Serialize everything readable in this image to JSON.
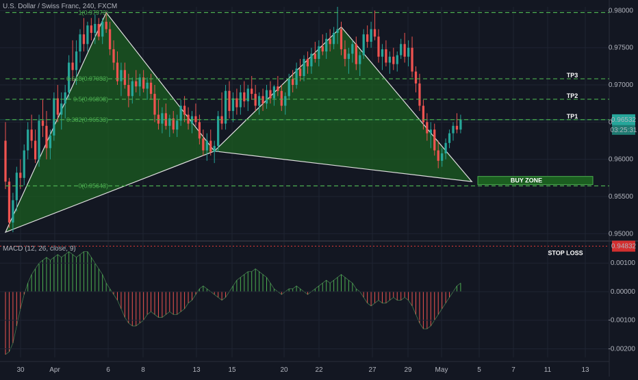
{
  "header": {
    "title": "U.S. Dollar / Swiss Franc, 240, FXCM"
  },
  "macd": {
    "label": "MACD (12, 26, close, 9)",
    "ticks": [
      "0.00100",
      "0.00000",
      "-0.00100",
      "-0.00200"
    ]
  },
  "colors": {
    "background": "#131722",
    "up_candle": "#26a69a",
    "down_candle": "#ef5350",
    "pattern_fill": "#1b5e20",
    "fib_line": "#4caf50",
    "stop_line": "#e53935",
    "price_tag": "#26a69a",
    "stop_tag": "#d32f2f"
  },
  "chart_data": {
    "type": "candlestick",
    "symbol": "U.S. Dollar / Swiss Franc",
    "interval": "240",
    "source": "FXCM",
    "ylim": [
      0.9492,
      0.9805
    ],
    "y_ticks": [
      "0.98000",
      "0.97500",
      "0.97000",
      "0.96500",
      "0.96000",
      "0.95500",
      "0.95000"
    ],
    "x_ticks": [
      "30",
      "Apr",
      "6",
      "8",
      "13",
      "15",
      "20",
      "22",
      "27",
      "29",
      "May",
      "5",
      "7",
      "11",
      "13"
    ],
    "fib_levels": [
      {
        "label": "1(0.97973)",
        "price": 0.97973
      },
      {
        "label": "0.618(0.97083)",
        "price": 0.97083
      },
      {
        "label": "0.5(0.96808)",
        "price": 0.96808
      },
      {
        "label": "0.382(0.96533)",
        "price": 0.96533
      },
      {
        "label": "0(0.95643)",
        "price": 0.95643
      }
    ],
    "targets": [
      {
        "label": "TP3",
        "price": 0.97083
      },
      {
        "label": "TP2",
        "price": 0.96808
      },
      {
        "label": "TP1",
        "price": 0.96533
      }
    ],
    "buy_zone": {
      "label": "BUY ZONE",
      "low": 0.9566,
      "high": 0.9577
    },
    "stop_loss": {
      "label": "STOP LOSS",
      "price": 0.94832,
      "tag": "0.94832"
    },
    "last_price": {
      "price": 0.96532,
      "tag": "0.96532",
      "countdown": "03:25:31"
    },
    "pattern_points": {
      "X": {
        "bar": 0,
        "price": 0.9502
      },
      "A": {
        "bar": 27,
        "price": 0.97973
      },
      "B": {
        "bar": 56,
        "price": 0.9611
      },
      "C": {
        "bar": 90,
        "price": 0.9778
      },
      "D": {
        "bar": 125,
        "price": 0.957
      }
    },
    "candles": [
      [
        0.9625,
        0.965,
        0.956,
        0.957
      ],
      [
        0.957,
        0.9575,
        0.9508,
        0.9515
      ],
      [
        0.9515,
        0.9555,
        0.9502,
        0.9545
      ],
      [
        0.9545,
        0.959,
        0.953,
        0.9582
      ],
      [
        0.9582,
        0.96,
        0.956,
        0.9575
      ],
      [
        0.9575,
        0.962,
        0.9565,
        0.9612
      ],
      [
        0.9612,
        0.965,
        0.96,
        0.964
      ],
      [
        0.964,
        0.966,
        0.9615,
        0.9625
      ],
      [
        0.9625,
        0.964,
        0.9595,
        0.96
      ],
      [
        0.96,
        0.966,
        0.959,
        0.9652
      ],
      [
        0.9652,
        0.968,
        0.963,
        0.9645
      ],
      [
        0.9645,
        0.9665,
        0.96,
        0.9615
      ],
      [
        0.9615,
        0.964,
        0.96,
        0.9632
      ],
      [
        0.9632,
        0.969,
        0.9625,
        0.9682
      ],
      [
        0.9682,
        0.97,
        0.965,
        0.966
      ],
      [
        0.966,
        0.969,
        0.964,
        0.9675
      ],
      [
        0.9675,
        0.97,
        0.9655,
        0.969
      ],
      [
        0.969,
        0.974,
        0.968,
        0.973
      ],
      [
        0.973,
        0.976,
        0.9705,
        0.972
      ],
      [
        0.972,
        0.976,
        0.97,
        0.9745
      ],
      [
        0.9745,
        0.9775,
        0.973,
        0.9768
      ],
      [
        0.9768,
        0.979,
        0.9745,
        0.9755
      ],
      [
        0.9755,
        0.9785,
        0.9745,
        0.978
      ],
      [
        0.978,
        0.979,
        0.976,
        0.977
      ],
      [
        0.977,
        0.9795,
        0.9755,
        0.9782
      ],
      [
        0.9782,
        0.979,
        0.976,
        0.9765
      ],
      [
        0.9765,
        0.979,
        0.9755,
        0.9785
      ],
      [
        0.9785,
        0.9797,
        0.977,
        0.9775
      ],
      [
        0.9775,
        0.9785,
        0.974,
        0.9748
      ],
      [
        0.9748,
        0.976,
        0.972,
        0.973
      ],
      [
        0.973,
        0.9745,
        0.97,
        0.9705
      ],
      [
        0.9705,
        0.973,
        0.9685,
        0.972
      ],
      [
        0.972,
        0.973,
        0.9695,
        0.97
      ],
      [
        0.97,
        0.9715,
        0.967,
        0.9685
      ],
      [
        0.9685,
        0.971,
        0.9675,
        0.9705
      ],
      [
        0.9705,
        0.972,
        0.969,
        0.9698
      ],
      [
        0.9698,
        0.9715,
        0.9685,
        0.971
      ],
      [
        0.971,
        0.972,
        0.969,
        0.9695
      ],
      [
        0.9695,
        0.971,
        0.968,
        0.9703
      ],
      [
        0.9703,
        0.9715,
        0.968,
        0.9688
      ],
      [
        0.9688,
        0.97,
        0.965,
        0.966
      ],
      [
        0.966,
        0.968,
        0.964,
        0.9648
      ],
      [
        0.9648,
        0.967,
        0.9635,
        0.9662
      ],
      [
        0.9662,
        0.9675,
        0.964,
        0.9645
      ],
      [
        0.9645,
        0.966,
        0.963,
        0.9655
      ],
      [
        0.9655,
        0.9665,
        0.9635,
        0.964
      ],
      [
        0.964,
        0.966,
        0.963,
        0.9652
      ],
      [
        0.9652,
        0.968,
        0.9645,
        0.9672
      ],
      [
        0.9672,
        0.9685,
        0.965,
        0.966
      ],
      [
        0.966,
        0.967,
        0.964,
        0.9648
      ],
      [
        0.9648,
        0.9665,
        0.9635,
        0.9658
      ],
      [
        0.9658,
        0.9675,
        0.9645,
        0.965
      ],
      [
        0.965,
        0.966,
        0.962,
        0.9628
      ],
      [
        0.9628,
        0.964,
        0.9605,
        0.9612
      ],
      [
        0.9612,
        0.9635,
        0.9598,
        0.9625
      ],
      [
        0.9625,
        0.964,
        0.9605,
        0.961
      ],
      [
        0.961,
        0.9625,
        0.9595,
        0.9618
      ],
      [
        0.9618,
        0.9665,
        0.961,
        0.9658
      ],
      [
        0.9658,
        0.969,
        0.964,
        0.9648
      ],
      [
        0.9648,
        0.97,
        0.964,
        0.9692
      ],
      [
        0.9692,
        0.9705,
        0.9655,
        0.9665
      ],
      [
        0.9665,
        0.969,
        0.965,
        0.9682
      ],
      [
        0.9682,
        0.9695,
        0.966,
        0.967
      ],
      [
        0.967,
        0.97,
        0.966,
        0.969
      ],
      [
        0.969,
        0.9705,
        0.967,
        0.9678
      ],
      [
        0.9678,
        0.97,
        0.9665,
        0.9695
      ],
      [
        0.9695,
        0.9712,
        0.968,
        0.9688
      ],
      [
        0.9688,
        0.97,
        0.9665,
        0.9672
      ],
      [
        0.9672,
        0.969,
        0.966,
        0.9685
      ],
      [
        0.9685,
        0.9695,
        0.9665,
        0.9675
      ],
      [
        0.9675,
        0.97,
        0.9668,
        0.9693
      ],
      [
        0.9693,
        0.9705,
        0.9675,
        0.9682
      ],
      [
        0.9682,
        0.97,
        0.9672,
        0.9698
      ],
      [
        0.9698,
        0.9712,
        0.9685,
        0.9692
      ],
      [
        0.9692,
        0.97,
        0.9665,
        0.9672
      ],
      [
        0.9672,
        0.969,
        0.966,
        0.9685
      ],
      [
        0.9685,
        0.9715,
        0.968,
        0.9708
      ],
      [
        0.9708,
        0.972,
        0.969,
        0.97
      ],
      [
        0.97,
        0.973,
        0.9695,
        0.9722
      ],
      [
        0.9722,
        0.9735,
        0.9705,
        0.9712
      ],
      [
        0.9712,
        0.974,
        0.9705,
        0.9735
      ],
      [
        0.9735,
        0.9745,
        0.9715,
        0.9725
      ],
      [
        0.9725,
        0.975,
        0.9715,
        0.9742
      ],
      [
        0.9742,
        0.9758,
        0.973,
        0.9735
      ],
      [
        0.9735,
        0.976,
        0.9725,
        0.9752
      ],
      [
        0.9752,
        0.9768,
        0.974,
        0.9745
      ],
      [
        0.9745,
        0.977,
        0.9735,
        0.9762
      ],
      [
        0.9762,
        0.9775,
        0.9745,
        0.9755
      ],
      [
        0.9755,
        0.9778,
        0.9748,
        0.977
      ],
      [
        0.977,
        0.9805,
        0.9755,
        0.9775
      ],
      [
        0.9775,
        0.9785,
        0.974,
        0.9748
      ],
      [
        0.9748,
        0.976,
        0.9725,
        0.9735
      ],
      [
        0.9735,
        0.975,
        0.9715,
        0.9742
      ],
      [
        0.9742,
        0.976,
        0.973,
        0.9755
      ],
      [
        0.9755,
        0.9765,
        0.972,
        0.9728
      ],
      [
        0.9728,
        0.9745,
        0.9712,
        0.974
      ],
      [
        0.974,
        0.9775,
        0.9735,
        0.9768
      ],
      [
        0.9768,
        0.978,
        0.975,
        0.9758
      ],
      [
        0.9758,
        0.9785,
        0.975,
        0.9775
      ],
      [
        0.9775,
        0.98,
        0.976,
        0.9765
      ],
      [
        0.9765,
        0.9775,
        0.973,
        0.9738
      ],
      [
        0.9738,
        0.9755,
        0.972,
        0.9748
      ],
      [
        0.9748,
        0.976,
        0.9725,
        0.973
      ],
      [
        0.973,
        0.9745,
        0.9715,
        0.9738
      ],
      [
        0.9738,
        0.975,
        0.972,
        0.9728
      ],
      [
        0.9728,
        0.9745,
        0.9718,
        0.974
      ],
      [
        0.974,
        0.9762,
        0.9735,
        0.9755
      ],
      [
        0.9755,
        0.977,
        0.973,
        0.9738
      ],
      [
        0.9738,
        0.976,
        0.9725,
        0.975
      ],
      [
        0.975,
        0.9765,
        0.971,
        0.9718
      ],
      [
        0.9718,
        0.9725,
        0.969,
        0.9702
      ],
      [
        0.9702,
        0.9715,
        0.9665,
        0.9672
      ],
      [
        0.9672,
        0.968,
        0.964,
        0.965
      ],
      [
        0.965,
        0.9662,
        0.9625,
        0.9635
      ],
      [
        0.9635,
        0.965,
        0.9615,
        0.964
      ],
      [
        0.964,
        0.9648,
        0.9605,
        0.9612
      ],
      [
        0.9612,
        0.9625,
        0.9588,
        0.9598
      ],
      [
        0.9598,
        0.9615,
        0.959,
        0.9608
      ],
      [
        0.9608,
        0.9628,
        0.96,
        0.9622
      ],
      [
        0.9622,
        0.964,
        0.9615,
        0.9635
      ],
      [
        0.9635,
        0.965,
        0.9625,
        0.9645
      ],
      [
        0.9645,
        0.9662,
        0.9635,
        0.964
      ],
      [
        0.964,
        0.966,
        0.9635,
        0.9653
      ]
    ],
    "macd_hist": [
      -0.0022,
      -0.0021,
      -0.0018,
      -0.0012,
      -0.0006,
      -0.0001,
      0.0003,
      0.0006,
      0.0008,
      0.001,
      0.0011,
      0.0012,
      0.0011,
      0.0012,
      0.0013,
      0.0012,
      0.0013,
      0.0014,
      0.0013,
      0.0012,
      0.0013,
      0.0014,
      0.0014,
      0.0012,
      0.001,
      0.0008,
      0.0006,
      0.0003,
      0.0001,
      -0.0001,
      -0.0003,
      -0.0006,
      -0.0009,
      -0.0011,
      -0.0012,
      -0.0012,
      -0.0011,
      -0.001,
      -0.0008,
      -0.0007,
      -0.0008,
      -0.0009,
      -0.0009,
      -0.0008,
      -0.0007,
      -0.0008,
      -0.0008,
      -0.0007,
      -0.0006,
      -0.0004,
      -0.0003,
      -0.0001,
      0.0001,
      0.0002,
      0.0001,
      0.0,
      -0.0001,
      -0.0002,
      -0.0003,
      -0.0002,
      0.0,
      0.0002,
      0.0004,
      0.0005,
      0.0006,
      0.0007,
      0.0007,
      0.0008,
      0.0007,
      0.0006,
      0.0005,
      0.0003,
      0.0001,
      0.0,
      -0.0001,
      0.0,
      0.0001,
      0.0001,
      0.0002,
      0.0001,
      0.0,
      -0.0001,
      0.0,
      0.0001,
      0.0002,
      0.0003,
      0.0004,
      0.0003,
      0.0004,
      0.0005,
      0.0006,
      0.0005,
      0.0004,
      0.0003,
      0.0001,
      0.0,
      -0.0002,
      -0.0004,
      -0.0005,
      -0.0004,
      -0.0003,
      -0.0004,
      -0.0004,
      -0.0003,
      -0.0002,
      -0.0003,
      -0.0003,
      -0.0002,
      -0.0003,
      -0.0005,
      -0.0008,
      -0.0011,
      -0.0013,
      -0.0013,
      -0.0012,
      -0.001,
      -0.0008,
      -0.0006,
      -0.0004,
      -0.0002,
      0.0,
      0.0002,
      0.0003
    ],
    "macd_ylim": [
      -0.0023,
      0.0017
    ]
  }
}
